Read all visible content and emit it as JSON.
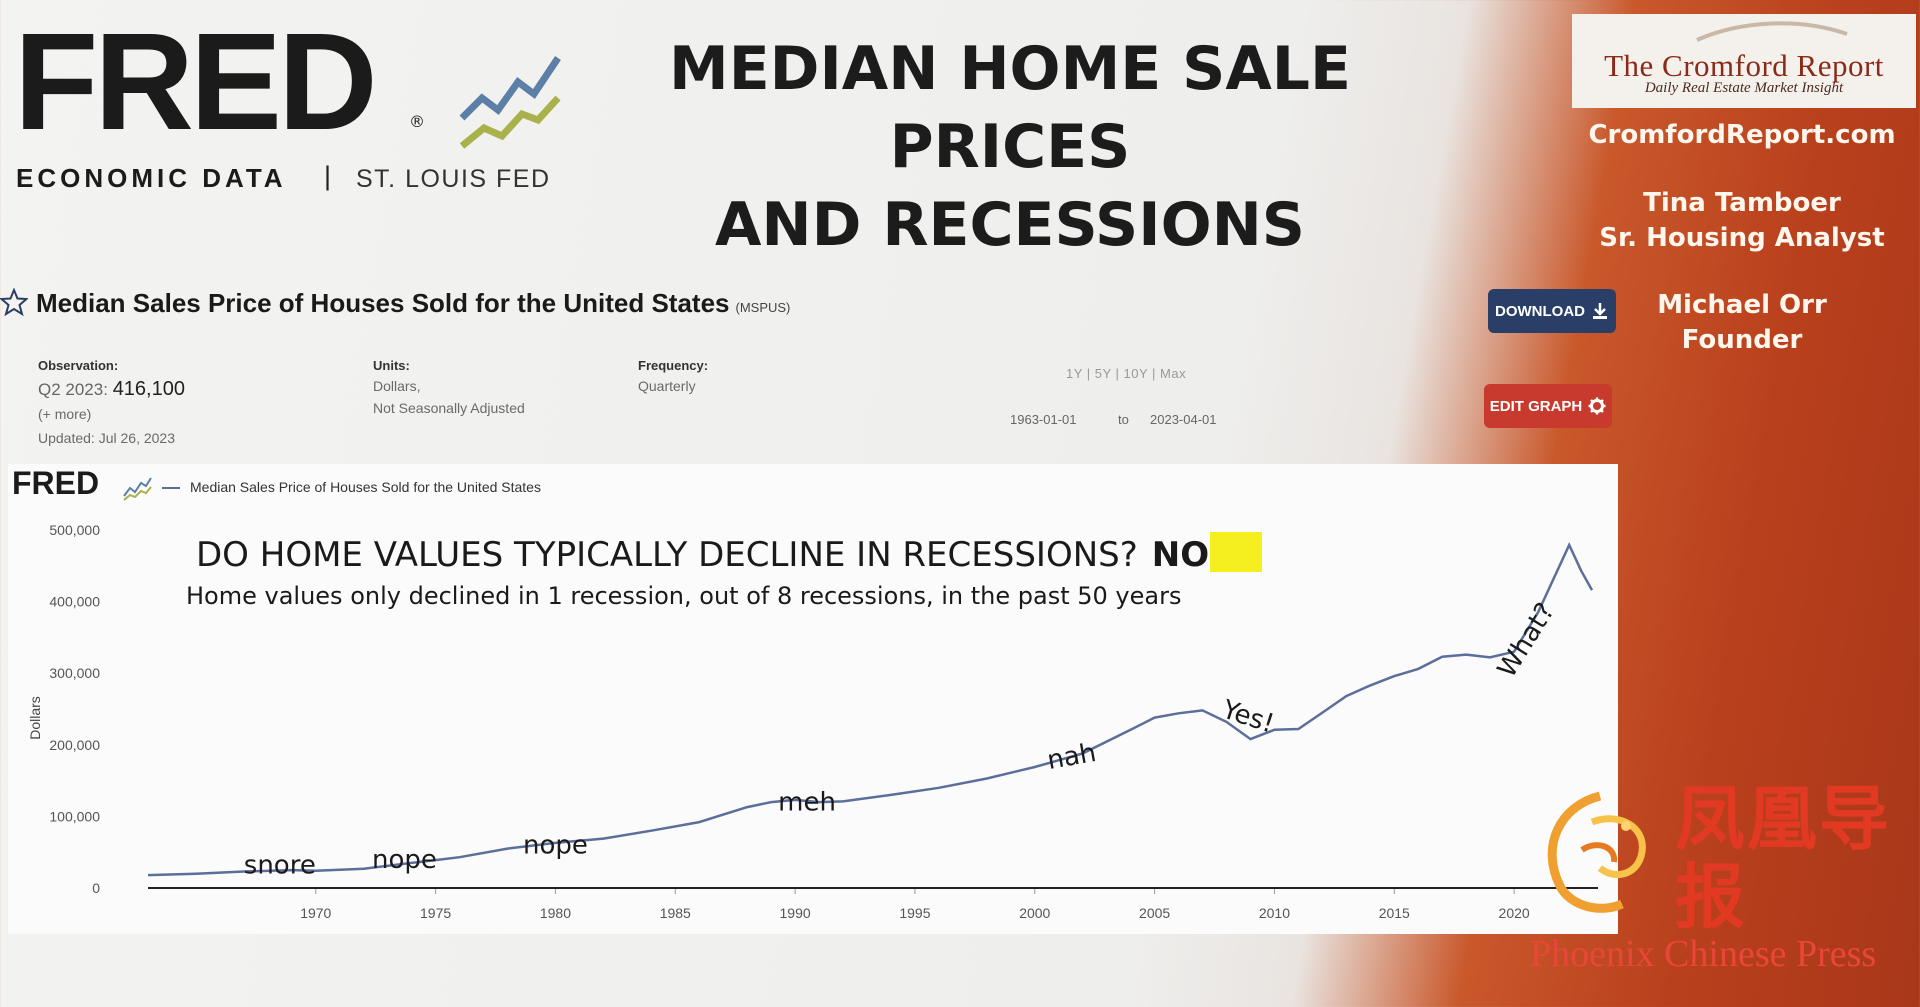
{
  "header": {
    "fred_logo_text": "FRED",
    "fred_registered": "®",
    "fred_sub_left": "ECONOMIC DATA",
    "fred_sub_sep": "|",
    "fred_sub_right": "ST. LOUIS FED",
    "title_line1": "MEDIAN HOME SALE PRICES",
    "title_line2": "AND RECESSIONS"
  },
  "side_panel": {
    "brand_name": "The Cromford Report",
    "brand_tagline": "Daily Real Estate Market Insight",
    "site_url": "CromfordReport.com",
    "analyst_name": "Tina Tamboer",
    "analyst_role": "Sr. Housing Analyst",
    "founder_name": "Michael Orr",
    "founder_role": "Founder"
  },
  "series": {
    "title": "Median Sales Price of Houses Sold for the United States",
    "code": "(MSPUS)",
    "observation_label": "Observation:",
    "observation_period": "Q2 2023:",
    "observation_value": "416,100",
    "more_link": "(+ more)",
    "updated": "Updated: Jul 26, 2023",
    "units_label": "Units:",
    "units_line1": "Dollars,",
    "units_line2": "Not Seasonally Adjusted",
    "frequency_label": "Frequency:",
    "frequency_value": "Quarterly",
    "range_links": "1Y | 5Y | 10Y | Max",
    "range_from": "1963-01-01",
    "range_to_label": "to",
    "range_to": "2023-04-01",
    "download_label": "DOWNLOAD",
    "edit_label": "EDIT GRAPH"
  },
  "chart_data": {
    "type": "line",
    "title": "DO HOME VALUES TYPICALLY DECLINE IN RECESSIONS?",
    "title_answer": "NO",
    "subtitle": "Home values only declined in 1 recession, out of 8 recessions, in the past 50 years",
    "legend_brand": "FRED",
    "ylabel": "Dollars",
    "xlabel": "",
    "ylim": [
      0,
      500000
    ],
    "xlim": [
      1963,
      2023.5
    ],
    "y_ticks": [
      0,
      100000,
      200000,
      300000,
      400000,
      500000
    ],
    "y_tick_labels": [
      "0",
      "100,000",
      "200,000",
      "300,000",
      "400,000",
      "500,000"
    ],
    "x_ticks": [
      1970,
      1975,
      1980,
      1985,
      1990,
      1995,
      2000,
      2005,
      2010,
      2015,
      2020
    ],
    "legend": "top-left",
    "grid": false,
    "line_color": "#5b6f9a",
    "series": [
      {
        "name": "Median Sales Price of Houses Sold for the United States",
        "x": [
          1963,
          1965,
          1967,
          1969,
          1970,
          1972,
          1974,
          1975,
          1976,
          1978,
          1980,
          1982,
          1984,
          1986,
          1988,
          1989,
          1990,
          1991,
          1992,
          1994,
          1996,
          1998,
          2000,
          2002,
          2004,
          2005,
          2006,
          2007,
          2008,
          2009,
          2010,
          2011,
          2012,
          2013,
          2014,
          2015,
          2016,
          2017,
          2018,
          2019,
          2020,
          2021,
          2022.3,
          2022.8,
          2023.25
        ],
        "y": [
          18000,
          20000,
          23000,
          25000,
          24000,
          27000,
          35000,
          39000,
          43000,
          55000,
          63000,
          69000,
          80000,
          92000,
          113000,
          120000,
          123000,
          120000,
          121000,
          130000,
          140000,
          153000,
          169000,
          188000,
          221000,
          238000,
          244000,
          248000,
          232000,
          208000,
          221000,
          222000,
          245000,
          268000,
          283000,
          296000,
          306000,
          323000,
          326000,
          322000,
          330000,
          385000,
          479000,
          443000,
          416100
        ]
      }
    ],
    "annotations": [
      {
        "text": "snore",
        "x": 1968.5,
        "y": 20000
      },
      {
        "text": "nope",
        "x": 1973.7,
        "y": 28000
      },
      {
        "text": "nope",
        "x": 1980,
        "y": 48000
      },
      {
        "text": "meh",
        "x": 1990.5,
        "y": 108000
      },
      {
        "text": "nah",
        "x": 2001.6,
        "y": 172000
      },
      {
        "text": "Yes!",
        "x": 2008.8,
        "y": 228000
      },
      {
        "text": "What?",
        "x": 2020.8,
        "y": 340000
      }
    ]
  },
  "watermark": {
    "chinese_name": "凤凰导报",
    "english_name": "Phoenix Chinese Press"
  }
}
